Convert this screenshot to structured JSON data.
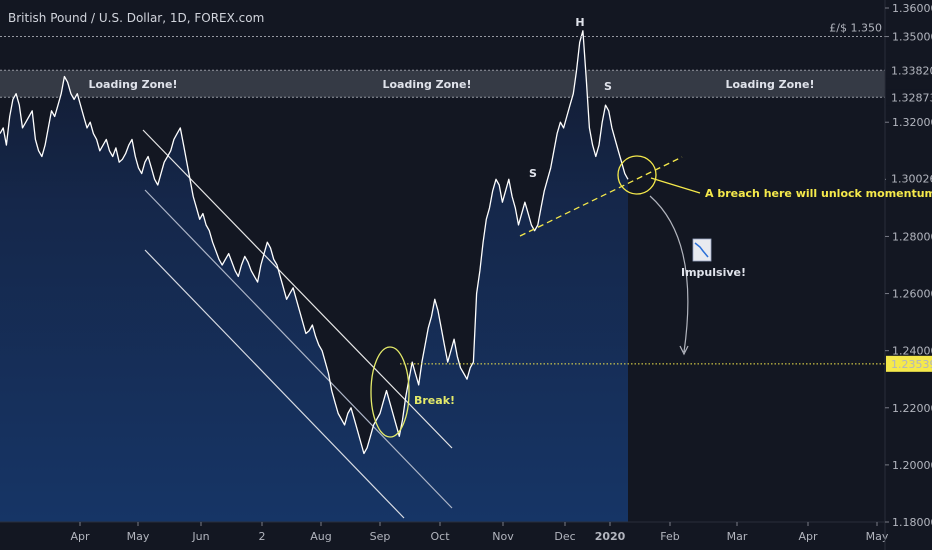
{
  "chart_data": {
    "type": "line",
    "title": "British Pound / U.S. Dollar, 1D, FOREX.com",
    "x_ticks": [
      "Apr",
      "May",
      "Jun",
      "2",
      "Aug",
      "Sep",
      "Oct",
      "Nov",
      "Dec",
      "2020",
      "Feb",
      "Mar",
      "Apr",
      "May"
    ],
    "y_ticks": [
      "1.36000",
      "1.35000",
      "1.32000",
      "1.30000",
      "1.28000",
      "1.26000",
      "1.24000",
      "1.22000",
      "1.20000",
      "1.18000"
    ],
    "ylim": [
      1.18,
      1.36
    ],
    "grid": false,
    "price_labels": [
      {
        "value": 1.3382,
        "text": "1.33820"
      },
      {
        "value": 1.32873,
        "text": "1.32873"
      },
      {
        "value": 1.30026,
        "text": "1.30026"
      },
      {
        "value": 1.23539,
        "text": "1.23539"
      }
    ],
    "level_1350": {
      "value": 1.35,
      "text": "£/$ 1.350"
    },
    "loading_zone": {
      "top": 1.3382,
      "bottom": 1.32873,
      "labels": [
        "Loading Zone!",
        "Loading Zone!",
        "Loading Zone!"
      ]
    },
    "series": [
      {
        "values": [
          1.316,
          1.318,
          1.312,
          1.322,
          1.328,
          1.33,
          1.326,
          1.318,
          1.32,
          1.322,
          1.324,
          1.314,
          1.31,
          1.308,
          1.312,
          1.318,
          1.324,
          1.322,
          1.326,
          1.33,
          1.336,
          1.334,
          1.33,
          1.328,
          1.33,
          1.326,
          1.322,
          1.318,
          1.32,
          1.316,
          1.314,
          1.31,
          1.312,
          1.314,
          1.31,
          1.308,
          1.311,
          1.306,
          1.307,
          1.309,
          1.312,
          1.314,
          1.308,
          1.304,
          1.302,
          1.306,
          1.308,
          1.304,
          1.3,
          1.298,
          1.302,
          1.306,
          1.308,
          1.31,
          1.314,
          1.316,
          1.318,
          1.312,
          1.306,
          1.3,
          1.294,
          1.29,
          1.286,
          1.288,
          1.284,
          1.282,
          1.278,
          1.275,
          1.272,
          1.27,
          1.272,
          1.274,
          1.271,
          1.268,
          1.266,
          1.27,
          1.273,
          1.271,
          1.268,
          1.266,
          1.264,
          1.27,
          1.274,
          1.278,
          1.276,
          1.272,
          1.27,
          1.266,
          1.262,
          1.258,
          1.26,
          1.262,
          1.258,
          1.254,
          1.25,
          1.246,
          1.247,
          1.249,
          1.245,
          1.242,
          1.24,
          1.236,
          1.232,
          1.226,
          1.222,
          1.218,
          1.216,
          1.214,
          1.218,
          1.22,
          1.216,
          1.212,
          1.208,
          1.204,
          1.206,
          1.21,
          1.214,
          1.216,
          1.218,
          1.222,
          1.226,
          1.222,
          1.218,
          1.214,
          1.21,
          1.216,
          1.224,
          1.23,
          1.236,
          1.232,
          1.228,
          1.236,
          1.242,
          1.248,
          1.252,
          1.258,
          1.254,
          1.248,
          1.242,
          1.236,
          1.24,
          1.244,
          1.238,
          1.234,
          1.232,
          1.23,
          1.234,
          1.236,
          1.26,
          1.268,
          1.278,
          1.286,
          1.29,
          1.296,
          1.3,
          1.298,
          1.292,
          1.296,
          1.3,
          1.294,
          1.29,
          1.284,
          1.288,
          1.292,
          1.288,
          1.284,
          1.282,
          1.284,
          1.29,
          1.296,
          1.3,
          1.304,
          1.31,
          1.316,
          1.32,
          1.318,
          1.322,
          1.326,
          1.33,
          1.338,
          1.348,
          1.352,
          1.336,
          1.318,
          1.312,
          1.308,
          1.312,
          1.32,
          1.326,
          1.324,
          1.318,
          1.314,
          1.31,
          1.306,
          1.302,
          1.3
        ]
      }
    ],
    "annotations": {
      "H": "H",
      "S_left": "S",
      "S_right": "S",
      "break": "Break!",
      "impulsive": "Impulsive!",
      "breach": "A breach here will unlock momentum!"
    },
    "colors": {
      "background": "#131722",
      "fill": "#16315e",
      "line": "#ffffff",
      "yellow": "#f5e94b",
      "zone": "#3a3e49"
    }
  }
}
